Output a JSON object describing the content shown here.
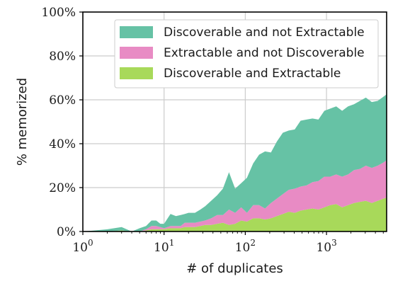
{
  "chart_data": {
    "type": "area",
    "stacked": true,
    "xlabel": "# of duplicates",
    "ylabel": "% memorized",
    "xscale": "log",
    "xlim": [
      1,
      5500
    ],
    "ylim": [
      0,
      100
    ],
    "grid": true,
    "legend_position": "top-right",
    "x_ticks": [
      {
        "value": 1,
        "base": "10",
        "exp": "0"
      },
      {
        "value": 10,
        "base": "10",
        "exp": "1"
      },
      {
        "value": 100,
        "base": "10",
        "exp": "2"
      },
      {
        "value": 1000,
        "base": "10",
        "exp": "3"
      }
    ],
    "y_ticks": [
      {
        "value": 0,
        "label": "0%"
      },
      {
        "value": 20,
        "label": "20%"
      },
      {
        "value": 40,
        "label": "40%"
      },
      {
        "value": 60,
        "label": "60%"
      },
      {
        "value": 80,
        "label": "80%"
      },
      {
        "value": 100,
        "label": "100%"
      }
    ],
    "x": [
      1,
      2,
      3,
      4,
      5,
      6,
      7,
      8,
      9,
      10,
      12,
      14,
      16,
      18,
      20,
      24,
      28,
      32,
      38,
      45,
      53,
      63,
      75,
      89,
      105,
      125,
      148,
      175,
      207,
      245,
      290,
      343,
      406,
      480,
      568,
      672,
      795,
      941,
      1113,
      1317,
      1558,
      1843,
      2180,
      2580,
      3052,
      3611,
      4272,
      5054,
      5500
    ],
    "series": [
      {
        "name": "Discoverable and Extractable",
        "color": "#a8d95a",
        "values": [
          0,
          0,
          0.5,
          0,
          0,
          0.5,
          1,
          1,
          1,
          1,
          1.5,
          1.5,
          1.5,
          2,
          2,
          2,
          2.5,
          3,
          3,
          3.5,
          4,
          3,
          3.5,
          5,
          4.5,
          6,
          6,
          5.5,
          6,
          7,
          8,
          9,
          8.5,
          9.5,
          10,
          10.5,
          10,
          11,
          12,
          12.5,
          11,
          12,
          13,
          13.5,
          14,
          13,
          14,
          15,
          15.5
        ]
      },
      {
        "name": "Extractable and not Discoverable",
        "color": "#e88bc4",
        "values": [
          0,
          0,
          0,
          0,
          0,
          0.5,
          1.5,
          1.5,
          1,
          0.5,
          1,
          1,
          1,
          2,
          2,
          2,
          2,
          2,
          3,
          4,
          3.5,
          7,
          5,
          6,
          4,
          6,
          6,
          5,
          7,
          8,
          9,
          10,
          11,
          11,
          11,
          12,
          13,
          14,
          13,
          13.5,
          14,
          14,
          15,
          15,
          16,
          16,
          16,
          16.5,
          17
        ]
      },
      {
        "name": "Discoverable and not Extractable",
        "color": "#66c2a5",
        "values": [
          0,
          1,
          1.5,
          0,
          1.5,
          1.5,
          2.5,
          2.5,
          1.5,
          2,
          5.5,
          4.5,
          5,
          4,
          4.5,
          4.5,
          5.5,
          6.5,
          8,
          9,
          12,
          17,
          11,
          11,
          16,
          19,
          23,
          26,
          23,
          26,
          28,
          27,
          27,
          30,
          30,
          29,
          28,
          30,
          31,
          31,
          30,
          31,
          30,
          31,
          31,
          30,
          29.5,
          30,
          30
        ]
      }
    ]
  }
}
